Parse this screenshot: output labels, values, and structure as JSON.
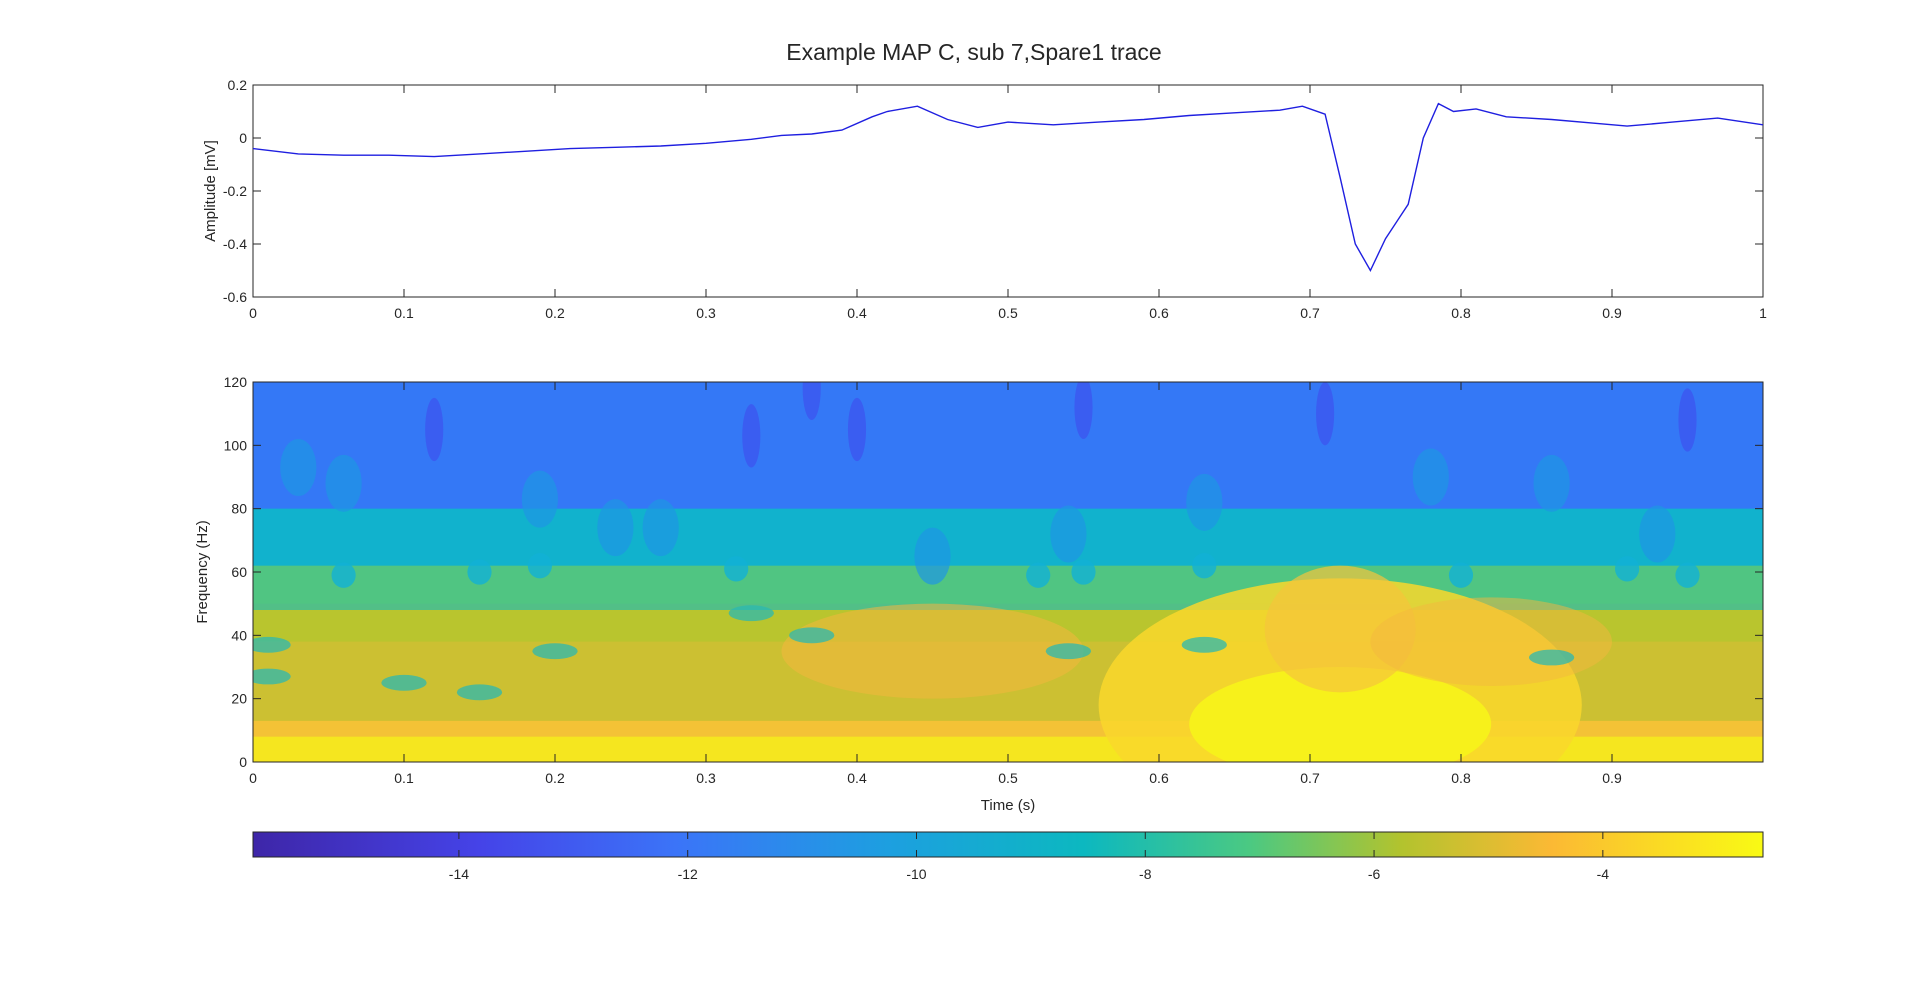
{
  "figure": {
    "title": "Example MAP C, sub 7,Spare1 trace"
  },
  "chart_data": [
    {
      "type": "line",
      "xlabel": "",
      "ylabel": "Amplitude [mV]",
      "xlim": [
        0,
        1
      ],
      "ylim": [
        -0.6,
        0.2
      ],
      "xticks": [
        "0",
        "0.1",
        "0.2",
        "0.3",
        "0.4",
        "0.5",
        "0.6",
        "0.7",
        "0.8",
        "0.9",
        "1"
      ],
      "yticks": [
        "-0.6",
        "-0.4",
        "-0.2",
        "0",
        "0.2"
      ],
      "grid": false,
      "color": "#1f1fe0",
      "x": [
        0,
        0.03,
        0.06,
        0.09,
        0.12,
        0.15,
        0.18,
        0.21,
        0.24,
        0.27,
        0.3,
        0.33,
        0.35,
        0.37,
        0.39,
        0.41,
        0.42,
        0.44,
        0.46,
        0.48,
        0.5,
        0.53,
        0.56,
        0.59,
        0.62,
        0.65,
        0.68,
        0.695,
        0.71,
        0.72,
        0.73,
        0.74,
        0.75,
        0.765,
        0.775,
        0.785,
        0.795,
        0.81,
        0.83,
        0.86,
        0.89,
        0.91,
        0.94,
        0.97,
        1.0
      ],
      "y": [
        -0.04,
        -0.06,
        -0.065,
        -0.065,
        -0.07,
        -0.06,
        -0.05,
        -0.04,
        -0.035,
        -0.03,
        -0.02,
        -0.005,
        0.01,
        0.015,
        0.03,
        0.08,
        0.1,
        0.12,
        0.07,
        0.04,
        0.06,
        0.05,
        0.06,
        0.07,
        0.085,
        0.095,
        0.105,
        0.12,
        0.09,
        -0.15,
        -0.4,
        -0.5,
        -0.38,
        -0.25,
        0.0,
        0.13,
        0.1,
        0.11,
        0.08,
        0.07,
        0.055,
        0.045,
        0.06,
        0.075,
        0.05
      ]
    },
    {
      "type": "heatmap",
      "xlabel": "Time (s)",
      "ylabel": "Frequency (Hz)",
      "xlim": [
        0,
        1
      ],
      "ylim": [
        0,
        120
      ],
      "xticks": [
        "0",
        "0.1",
        "0.2",
        "0.3",
        "0.4",
        "0.5",
        "0.6",
        "0.7",
        "0.8",
        "0.9"
      ],
      "yticks": [
        "0",
        "20",
        "40",
        "60",
        "80",
        "100",
        "120"
      ],
      "colormap": "parula",
      "clim": [
        -15.8,
        -2.6
      ],
      "colorbar_location": "bottom",
      "colorbar_ticks": [
        "-14",
        "-12",
        "-10",
        "-8",
        "-6",
        "-4"
      ],
      "features": [
        {
          "region": "low frequencies 0-12 Hz, all times",
          "level": -3.2
        },
        {
          "region": "burst centred near 0.72 s, up to ~55 Hz",
          "level": -3.0
        },
        {
          "region": "20-50 Hz band",
          "level": -5.0
        },
        {
          "region": "50-70 Hz band",
          "level": -7.5
        },
        {
          "region": "80-120 Hz band",
          "level": -11.5
        }
      ]
    }
  ]
}
